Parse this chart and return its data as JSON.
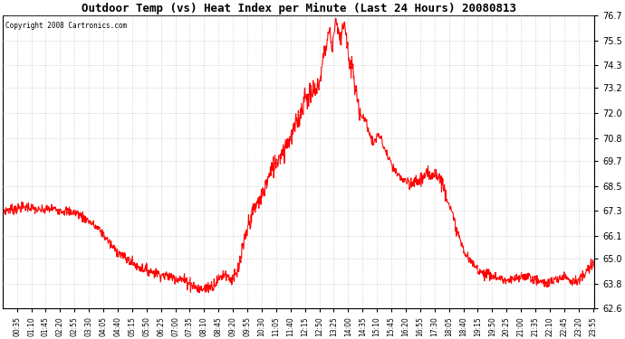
{
  "title": "Outdoor Temp (vs) Heat Index per Minute (Last 24 Hours) 20080813",
  "copyright": "Copyright 2008 Cartronics.com",
  "line_color": "#FF0000",
  "background_color": "#FFFFFF",
  "plot_bg_color": "#FFFFFF",
  "grid_color": "#BBBBBB",
  "yticks": [
    62.6,
    63.8,
    65.0,
    66.1,
    67.3,
    68.5,
    69.7,
    70.8,
    72.0,
    73.2,
    74.3,
    75.5,
    76.7
  ],
  "ymin": 62.6,
  "ymax": 76.7,
  "xtick_labels": [
    "00:35",
    "01:10",
    "01:45",
    "02:20",
    "02:55",
    "03:30",
    "04:05",
    "04:40",
    "05:15",
    "05:50",
    "06:25",
    "07:00",
    "07:35",
    "08:10",
    "08:45",
    "09:20",
    "09:55",
    "10:30",
    "11:05",
    "11:40",
    "12:15",
    "12:50",
    "13:25",
    "14:00",
    "14:35",
    "15:10",
    "15:45",
    "16:20",
    "16:55",
    "17:30",
    "18:05",
    "18:40",
    "19:15",
    "19:50",
    "20:25",
    "21:00",
    "21:35",
    "22:10",
    "22:45",
    "23:20",
    "23:55"
  ],
  "figsize": [
    6.9,
    3.75
  ],
  "dpi": 100
}
